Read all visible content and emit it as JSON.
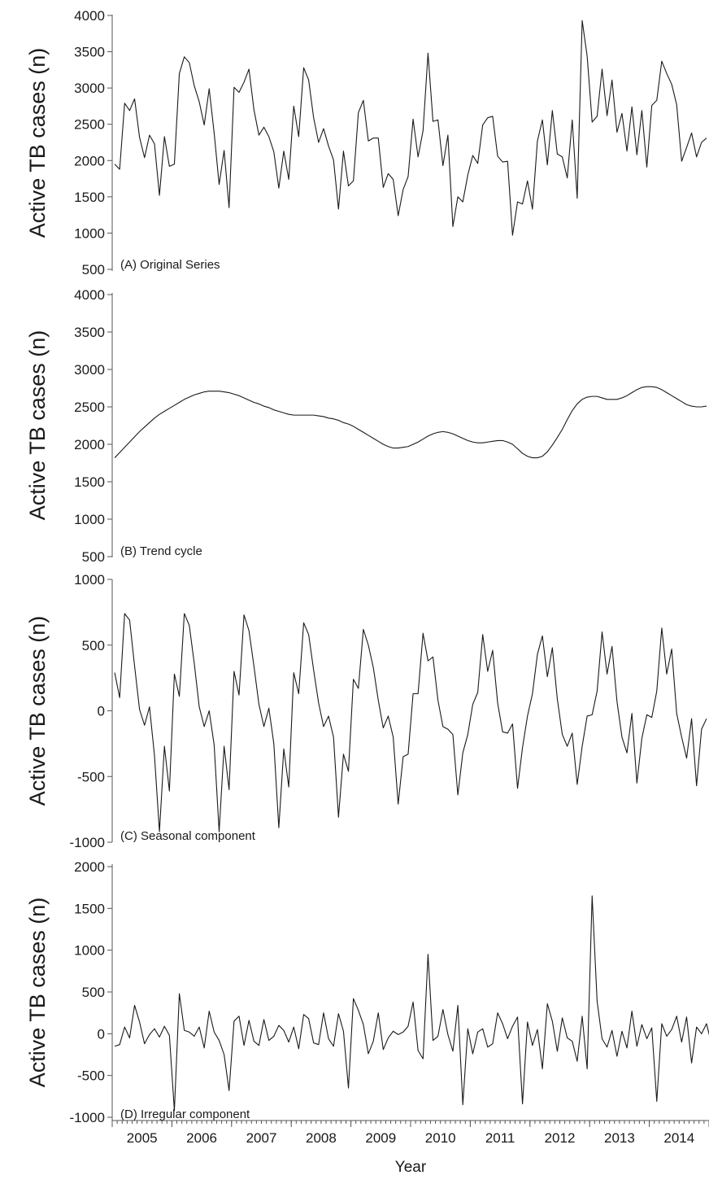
{
  "chart_data": [
    {
      "type": "line",
      "panel_label": "(A) Original Series",
      "ylabel": "Active TB cases (n)",
      "ylim": [
        500,
        4000
      ],
      "yticks": [
        500,
        1000,
        1500,
        2000,
        2500,
        3000,
        3500,
        4000
      ],
      "x_start": "2005-01",
      "x_step": "month",
      "values": [
        1950,
        1880,
        2790,
        2690,
        2850,
        2320,
        2040,
        2350,
        2230,
        1520,
        2330,
        1920,
        1950,
        3200,
        3430,
        3350,
        3030,
        2810,
        2490,
        2990,
        2380,
        1670,
        2140,
        1350,
        3010,
        2940,
        3080,
        3260,
        2700,
        2350,
        2460,
        2330,
        2120,
        1620,
        2130,
        1740,
        2750,
        2330,
        3280,
        3110,
        2590,
        2250,
        2440,
        2200,
        2010,
        1330,
        2130,
        1650,
        1720,
        2660,
        2830,
        2270,
        2310,
        2310,
        1630,
        1820,
        1740,
        1240,
        1600,
        1780,
        2570,
        2050,
        2410,
        3480,
        2540,
        2560,
        1930,
        2350,
        1090,
        1500,
        1430,
        1800,
        2070,
        1960,
        2490,
        2590,
        2610,
        2060,
        1980,
        1990,
        970,
        1430,
        1400,
        1720,
        1330,
        2270,
        2560,
        1940,
        2690,
        2090,
        2050,
        1760,
        2560,
        1480,
        3930,
        3440,
        2530,
        2610,
        3260,
        2620,
        3110,
        2390,
        2650,
        2130,
        2740,
        2080,
        2690,
        1910,
        2760,
        2830,
        3370,
        3200,
        3050,
        2770,
        1990,
        2180,
        2380,
        2050,
        2250,
        2310
      ]
    },
    {
      "type": "line",
      "panel_label": "(B) Trend cycle",
      "ylabel": "Active TB cases (n)",
      "ylim": [
        500,
        4000
      ],
      "yticks": [
        500,
        1000,
        1500,
        2000,
        2500,
        3000,
        3500,
        4000
      ],
      "x_start": "2005-01",
      "x_step": "month",
      "values": [
        1820,
        1890,
        1960,
        2030,
        2100,
        2170,
        2230,
        2290,
        2350,
        2400,
        2440,
        2480,
        2520,
        2560,
        2600,
        2630,
        2660,
        2680,
        2700,
        2710,
        2710,
        2710,
        2700,
        2690,
        2670,
        2650,
        2620,
        2590,
        2560,
        2540,
        2510,
        2490,
        2460,
        2440,
        2420,
        2400,
        2390,
        2390,
        2390,
        2390,
        2390,
        2380,
        2370,
        2350,
        2340,
        2320,
        2290,
        2270,
        2240,
        2200,
        2160,
        2120,
        2080,
        2040,
        2000,
        1970,
        1950,
        1950,
        1960,
        1970,
        2000,
        2030,
        2070,
        2110,
        2140,
        2160,
        2170,
        2160,
        2140,
        2110,
        2080,
        2050,
        2030,
        2020,
        2020,
        2030,
        2040,
        2050,
        2050,
        2030,
        2000,
        1940,
        1880,
        1840,
        1820,
        1820,
        1840,
        1900,
        1990,
        2090,
        2200,
        2330,
        2450,
        2540,
        2600,
        2630,
        2640,
        2640,
        2620,
        2600,
        2600,
        2600,
        2620,
        2650,
        2690,
        2730,
        2760,
        2770,
        2770,
        2760,
        2730,
        2690,
        2650,
        2610,
        2570,
        2530,
        2510,
        2500,
        2500,
        2510
      ]
    },
    {
      "type": "line",
      "panel_label": "(C) Seasonal component",
      "ylabel": "Active TB cases (n)",
      "ylim": [
        -1000,
        1000
      ],
      "yticks": [
        -1000,
        -500,
        0,
        500,
        1000
      ],
      "x_start": "2005-01",
      "x_step": "month",
      "values": [
        290,
        100,
        740,
        690,
        340,
        10,
        -110,
        30,
        -340,
        -920,
        -270,
        -610,
        280,
        110,
        740,
        650,
        360,
        30,
        -120,
        0,
        -260,
        -920,
        -270,
        -600,
        300,
        120,
        730,
        610,
        340,
        50,
        -120,
        20,
        -250,
        -890,
        -290,
        -580,
        290,
        130,
        670,
        580,
        310,
        60,
        -120,
        -40,
        -200,
        -810,
        -330,
        -460,
        240,
        170,
        620,
        500,
        330,
        80,
        -130,
        -40,
        -200,
        -710,
        -350,
        -330,
        130,
        130,
        590,
        380,
        410,
        80,
        -120,
        -140,
        -180,
        -640,
        -320,
        -180,
        50,
        140,
        580,
        300,
        460,
        60,
        -160,
        -170,
        -100,
        -590,
        -280,
        -40,
        130,
        430,
        570,
        260,
        480,
        90,
        -180,
        -270,
        -170,
        -560,
        -270,
        -40,
        -30,
        150,
        600,
        280,
        490,
        70,
        -200,
        -320,
        -20,
        -550,
        -210,
        -30,
        -50,
        150,
        630,
        280,
        470,
        -20,
        -200,
        -360,
        -60,
        -570,
        -140,
        -60
      ]
    },
    {
      "type": "line",
      "panel_label": "(D) Irregular component",
      "ylabel": "Active TB cases (n)",
      "ylim": [
        -1000,
        2000
      ],
      "yticks": [
        -1000,
        -500,
        0,
        500,
        1000,
        1500,
        2000
      ],
      "x_start": "2005-01",
      "x_step": "month",
      "values": [
        -150,
        -130,
        80,
        -50,
        340,
        140,
        -120,
        -10,
        60,
        -40,
        90,
        -20,
        -920,
        480,
        40,
        20,
        -30,
        80,
        -170,
        270,
        20,
        -80,
        -250,
        -680,
        150,
        210,
        -140,
        160,
        -90,
        -140,
        170,
        -80,
        -30,
        100,
        40,
        -100,
        80,
        -180,
        230,
        180,
        -110,
        -130,
        250,
        -60,
        -150,
        240,
        30,
        -650,
        420,
        280,
        110,
        -240,
        -90,
        250,
        -190,
        -50,
        30,
        -10,
        20,
        90,
        380,
        -200,
        -300,
        950,
        -80,
        -30,
        290,
        -10,
        -210,
        340,
        -850,
        60,
        -240,
        20,
        60,
        -160,
        -120,
        250,
        120,
        -60,
        90,
        200,
        -840,
        140,
        -140,
        50,
        -420,
        360,
        150,
        -210,
        190,
        -50,
        -90,
        -330,
        210,
        -420,
        1650,
        390,
        -60,
        -160,
        40,
        -270,
        30,
        -170,
        270,
        -150,
        110,
        -60,
        70,
        -810,
        120,
        -30,
        50,
        210,
        -100,
        200,
        -350,
        80,
        0,
        120,
        -120,
        -150
      ]
    }
  ],
  "x_axis": {
    "label": "Year",
    "years": [
      "2005",
      "2006",
      "2007",
      "2008",
      "2009",
      "2010",
      "2011",
      "2012",
      "2013",
      "2014"
    ]
  },
  "style": {
    "line_color": "#1a1a1a",
    "axis_color": "#555555"
  }
}
